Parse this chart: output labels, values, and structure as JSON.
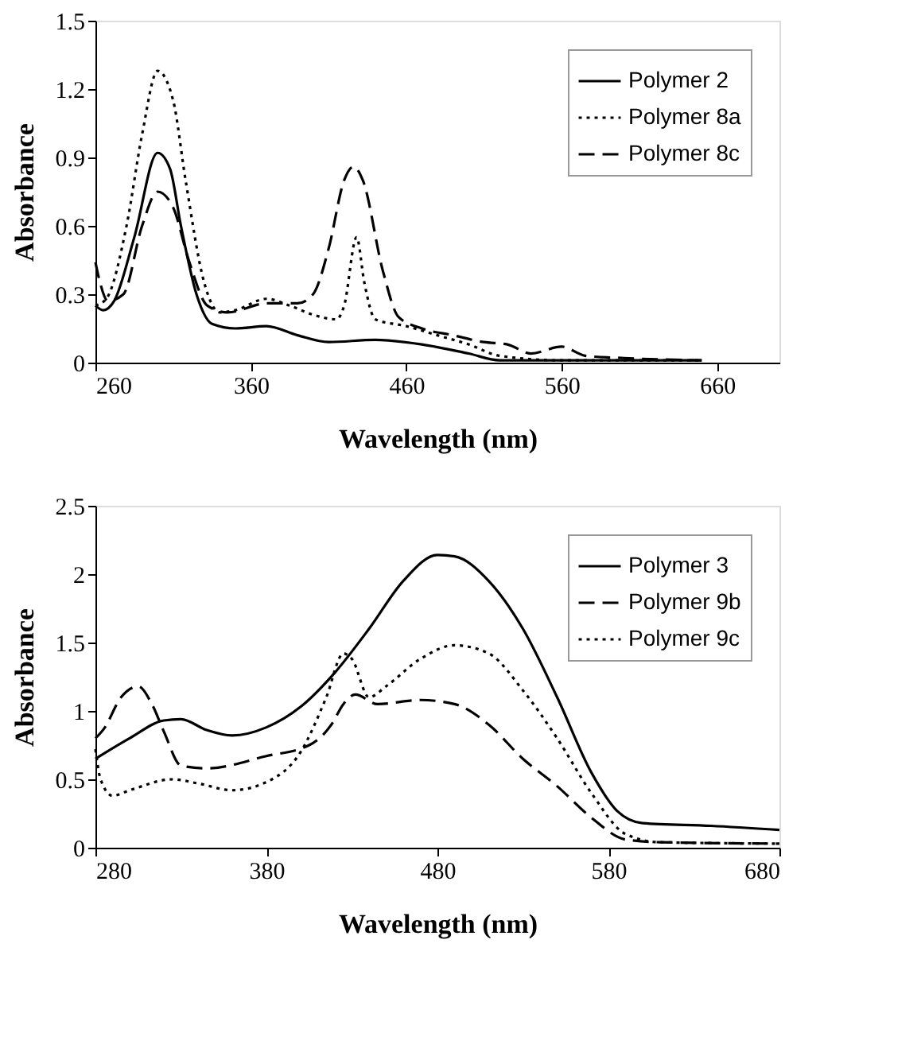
{
  "chart_data": [
    {
      "type": "line",
      "xlabel": "Wavelength (nm)",
      "ylabel": "Absorbance",
      "xlim": [
        260,
        700
      ],
      "xticks": [
        260,
        360,
        460,
        560,
        660
      ],
      "ylim": [
        0,
        1.5
      ],
      "yticks": [
        0,
        0.3,
        0.6,
        0.9,
        1.2,
        1.5
      ],
      "grid": false,
      "legend": "top right",
      "marker": "none",
      "series": [
        {
          "name": "Polymer 2",
          "color": "#000000",
          "line_style": "solid",
          "x": [
            260,
            265,
            272,
            285,
            300,
            308,
            315,
            325,
            335,
            350,
            370,
            390,
            410,
            440,
            470,
            500,
            520,
            560,
            650
          ],
          "values": [
            0.25,
            0.23,
            0.27,
            0.55,
            0.92,
            0.85,
            0.6,
            0.3,
            0.17,
            0.15,
            0.16,
            0.12,
            0.09,
            0.1,
            0.08,
            0.04,
            0.01,
            0.01,
            0.01
          ]
        },
        {
          "name": "Polymer 8a",
          "color": "#000000",
          "line_style": "dotted",
          "x": [
            260,
            267,
            280,
            290,
            300,
            310,
            318,
            330,
            340,
            350,
            370,
            385,
            400,
            415,
            420,
            428,
            433,
            440,
            460,
            480,
            500,
            520,
            560,
            650
          ],
          "values": [
            0.25,
            0.28,
            0.6,
            1.0,
            1.28,
            1.15,
            0.8,
            0.35,
            0.22,
            0.23,
            0.28,
            0.25,
            0.21,
            0.19,
            0.25,
            0.55,
            0.35,
            0.19,
            0.16,
            0.12,
            0.08,
            0.03,
            0.01,
            0.01
          ]
        },
        {
          "name": "Polymer 8c",
          "color": "#000000",
          "line_style": "dashed",
          "x": [
            260,
            263,
            268,
            278,
            290,
            300,
            310,
            320,
            332,
            345,
            370,
            390,
            400,
            410,
            420,
            426,
            432,
            445,
            455,
            470,
            490,
            510,
            525,
            540,
            560,
            575,
            600,
            650
          ],
          "values": [
            0.44,
            0.35,
            0.27,
            0.3,
            0.6,
            0.75,
            0.68,
            0.45,
            0.25,
            0.22,
            0.26,
            0.26,
            0.3,
            0.5,
            0.8,
            0.86,
            0.8,
            0.4,
            0.2,
            0.15,
            0.12,
            0.09,
            0.08,
            0.04,
            0.07,
            0.03,
            0.02,
            0.01
          ]
        }
      ]
    },
    {
      "type": "line",
      "xlabel": "Wavelength (nm)",
      "ylabel": "Absorbance",
      "xlim": [
        280,
        680
      ],
      "xticks": [
        280,
        380,
        480,
        580,
        680
      ],
      "ylim": [
        0,
        2.5
      ],
      "yticks": [
        0,
        0.5,
        1,
        1.5,
        2,
        2.5
      ],
      "grid": false,
      "legend": "top right",
      "marker": "none",
      "series": [
        {
          "name": "Polymer 3",
          "color": "#000000",
          "line_style": "solid",
          "x": [
            280,
            300,
            320,
            330,
            345,
            360,
            380,
            400,
            420,
            440,
            460,
            480,
            490,
            510,
            530,
            550,
            570,
            585,
            600,
            640,
            680
          ],
          "values": [
            0.65,
            0.8,
            0.93,
            0.94,
            0.86,
            0.82,
            0.88,
            1.03,
            1.28,
            1.6,
            1.95,
            2.14,
            2.13,
            1.95,
            1.6,
            1.1,
            0.55,
            0.27,
            0.18,
            0.16,
            0.13
          ]
        },
        {
          "name": "Polymer 9b",
          "color": "#000000",
          "line_style": "dashed",
          "x": [
            280,
            285,
            295,
            305,
            313,
            320,
            330,
            345,
            380,
            405,
            418,
            425,
            432,
            445,
            470,
            490,
            510,
            530,
            550,
            570,
            590,
            610,
            680
          ],
          "values": [
            0.8,
            0.87,
            1.1,
            1.18,
            1.05,
            0.85,
            0.6,
            0.58,
            0.67,
            0.75,
            0.9,
            1.05,
            1.12,
            1.05,
            1.08,
            1.05,
            0.9,
            0.65,
            0.45,
            0.22,
            0.06,
            0.04,
            0.03
          ]
        },
        {
          "name": "Polymer 9c",
          "color": "#000000",
          "line_style": "dotted",
          "x": [
            280,
            283,
            290,
            300,
            325,
            340,
            360,
            380,
            400,
            415,
            425,
            430,
            440,
            450,
            470,
            490,
            510,
            530,
            550,
            570,
            590,
            610,
            680
          ],
          "values": [
            0.72,
            0.5,
            0.38,
            0.42,
            0.5,
            0.47,
            0.42,
            0.48,
            0.7,
            1.1,
            1.42,
            1.38,
            1.1,
            1.18,
            1.38,
            1.48,
            1.42,
            1.15,
            0.8,
            0.4,
            0.1,
            0.04,
            0.03
          ]
        }
      ]
    }
  ]
}
